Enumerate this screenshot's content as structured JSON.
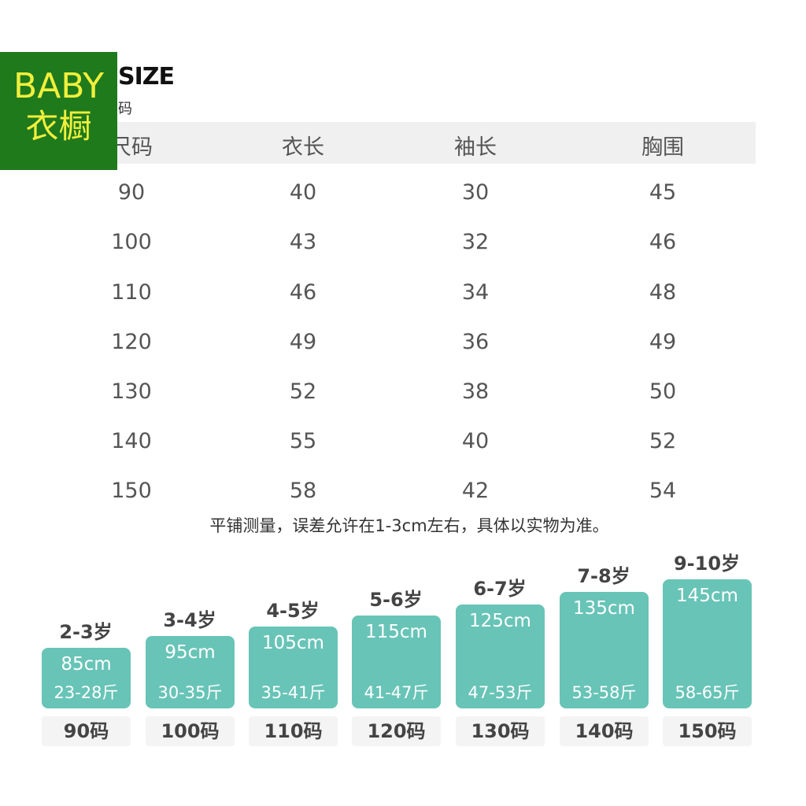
{
  "logo": {
    "line1": "BABY",
    "line2": "衣橱"
  },
  "title": "SIZE",
  "subtitle": "码",
  "table": {
    "columns": [
      "尺码",
      "衣长",
      "袖长",
      "胸围"
    ],
    "rows": [
      [
        "90",
        "40",
        "30",
        "45"
      ],
      [
        "100",
        "43",
        "32",
        "46"
      ],
      [
        "110",
        "46",
        "34",
        "48"
      ],
      [
        "120",
        "49",
        "36",
        "49"
      ],
      [
        "130",
        "52",
        "38",
        "50"
      ],
      [
        "140",
        "55",
        "40",
        "52"
      ],
      [
        "150",
        "58",
        "42",
        "54"
      ]
    ]
  },
  "note": "平铺测量，误差允许在1-3cm左右，具体以实物为准。",
  "cards": [
    {
      "age": "2-3岁",
      "height": "85cm",
      "weight": "23-28斤",
      "size": "90码"
    },
    {
      "age": "3-4岁",
      "height": "95cm",
      "weight": "30-35斤",
      "size": "100码"
    },
    {
      "age": "4-5岁",
      "height": "105cm",
      "weight": "35-41斤",
      "size": "110码"
    },
    {
      "age": "5-6岁",
      "height": "115cm",
      "weight": "41-47斤",
      "size": "120码"
    },
    {
      "age": "6-7岁",
      "height": "125cm",
      "weight": "47-53斤",
      "size": "130码"
    },
    {
      "age": "7-8岁",
      "height": "135cm",
      "weight": "53-58斤",
      "size": "140码"
    },
    {
      "age": "9-10岁",
      "height": "145cm",
      "weight": "58-65斤",
      "size": "150码"
    }
  ]
}
